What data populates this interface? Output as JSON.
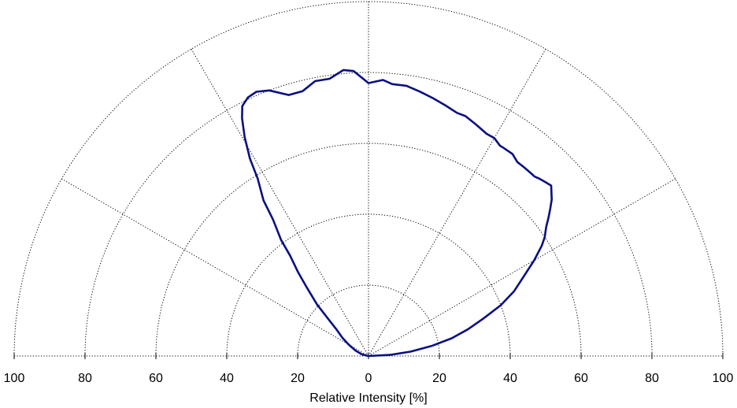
{
  "chart_data": {
    "type": "polar-line",
    "xlabel": "Relative Intensity [%]",
    "radial_range": [
      0,
      100
    ],
    "radial_ticks": [
      0,
      20,
      40,
      60,
      80,
      100
    ],
    "tick_labels_left": [
      "100",
      "80",
      "60",
      "40",
      "20"
    ],
    "tick_labels_center": [
      "0"
    ],
    "tick_labels_right": [
      "20",
      "40",
      "60",
      "80",
      "100"
    ],
    "angle_range_deg": [
      -90,
      90
    ],
    "angle_grid_deg": [
      -90,
      -60,
      -30,
      0,
      30,
      60,
      90
    ],
    "grid": true,
    "colors": {
      "series": "#0a1080"
    },
    "series": [
      {
        "points": [
          {
            "angle": -90,
            "r": 0
          },
          {
            "angle": -75,
            "r": 2
          },
          {
            "angle": -67,
            "r": 4
          },
          {
            "angle": -60,
            "r": 6.5
          },
          {
            "angle": -55,
            "r": 9
          },
          {
            "angle": -50,
            "r": 12
          },
          {
            "angle": -47,
            "r": 16
          },
          {
            "angle": -45,
            "r": 20.5
          },
          {
            "angle": -42,
            "r": 26
          },
          {
            "angle": -40,
            "r": 31
          },
          {
            "angle": -38,
            "r": 36
          },
          {
            "angle": -37,
            "r": 41
          },
          {
            "angle": -35,
            "r": 47
          },
          {
            "angle": -34,
            "r": 53
          },
          {
            "angle": -32,
            "r": 59
          },
          {
            "angle": -31,
            "r": 65
          },
          {
            "angle": -29.5,
            "r": 71
          },
          {
            "angle": -28,
            "r": 76
          },
          {
            "angle": -26.8,
            "r": 79
          },
          {
            "angle": -25,
            "r": 80.5
          },
          {
            "angle": -23,
            "r": 81
          },
          {
            "angle": -20.5,
            "r": 80
          },
          {
            "angle": -17,
            "r": 77
          },
          {
            "angle": -14,
            "r": 77
          },
          {
            "angle": -11,
            "r": 79
          },
          {
            "angle": -8,
            "r": 79
          },
          {
            "angle": -5,
            "r": 81
          },
          {
            "angle": -3,
            "r": 80.5
          },
          {
            "angle": 0,
            "r": 77
          },
          {
            "angle": 3,
            "r": 78
          },
          {
            "angle": 5,
            "r": 77
          },
          {
            "angle": 8,
            "r": 77
          },
          {
            "angle": 11,
            "r": 76
          },
          {
            "angle": 14,
            "r": 75
          },
          {
            "angle": 17,
            "r": 74
          },
          {
            "angle": 20,
            "r": 73
          },
          {
            "angle": 22,
            "r": 73
          },
          {
            "angle": 25,
            "r": 72
          },
          {
            "angle": 28,
            "r": 71
          },
          {
            "angle": 30,
            "r": 71
          },
          {
            "angle": 32,
            "r": 70
          },
          {
            "angle": 33,
            "r": 70
          },
          {
            "angle": 34.5,
            "r": 70
          },
          {
            "angle": 35.5,
            "r": 70
          },
          {
            "angle": 37.5,
            "r": 69
          },
          {
            "angle": 39.5,
            "r": 69
          },
          {
            "angle": 41.5,
            "r": 69
          },
          {
            "angle": 42.8,
            "r": 69
          },
          {
            "angle": 44,
            "r": 69.5
          },
          {
            "angle": 45.5,
            "r": 70
          },
          {
            "angle": 47,
            "r": 70.5
          },
          {
            "angle": 49.5,
            "r": 68
          },
          {
            "angle": 51,
            "r": 66
          },
          {
            "angle": 52.5,
            "r": 64
          },
          {
            "angle": 54,
            "r": 62
          },
          {
            "angle": 56,
            "r": 60
          },
          {
            "angle": 57.5,
            "r": 58
          },
          {
            "angle": 60,
            "r": 54
          },
          {
            "angle": 63,
            "r": 49
          },
          {
            "angle": 66,
            "r": 45
          },
          {
            "angle": 69,
            "r": 40
          },
          {
            "angle": 72,
            "r": 34
          },
          {
            "angle": 75,
            "r": 29
          },
          {
            "angle": 78,
            "r": 24
          },
          {
            "angle": 81,
            "r": 18
          },
          {
            "angle": 84,
            "r": 12
          },
          {
            "angle": 87,
            "r": 6
          },
          {
            "angle": 90,
            "r": 0
          }
        ]
      }
    ]
  }
}
